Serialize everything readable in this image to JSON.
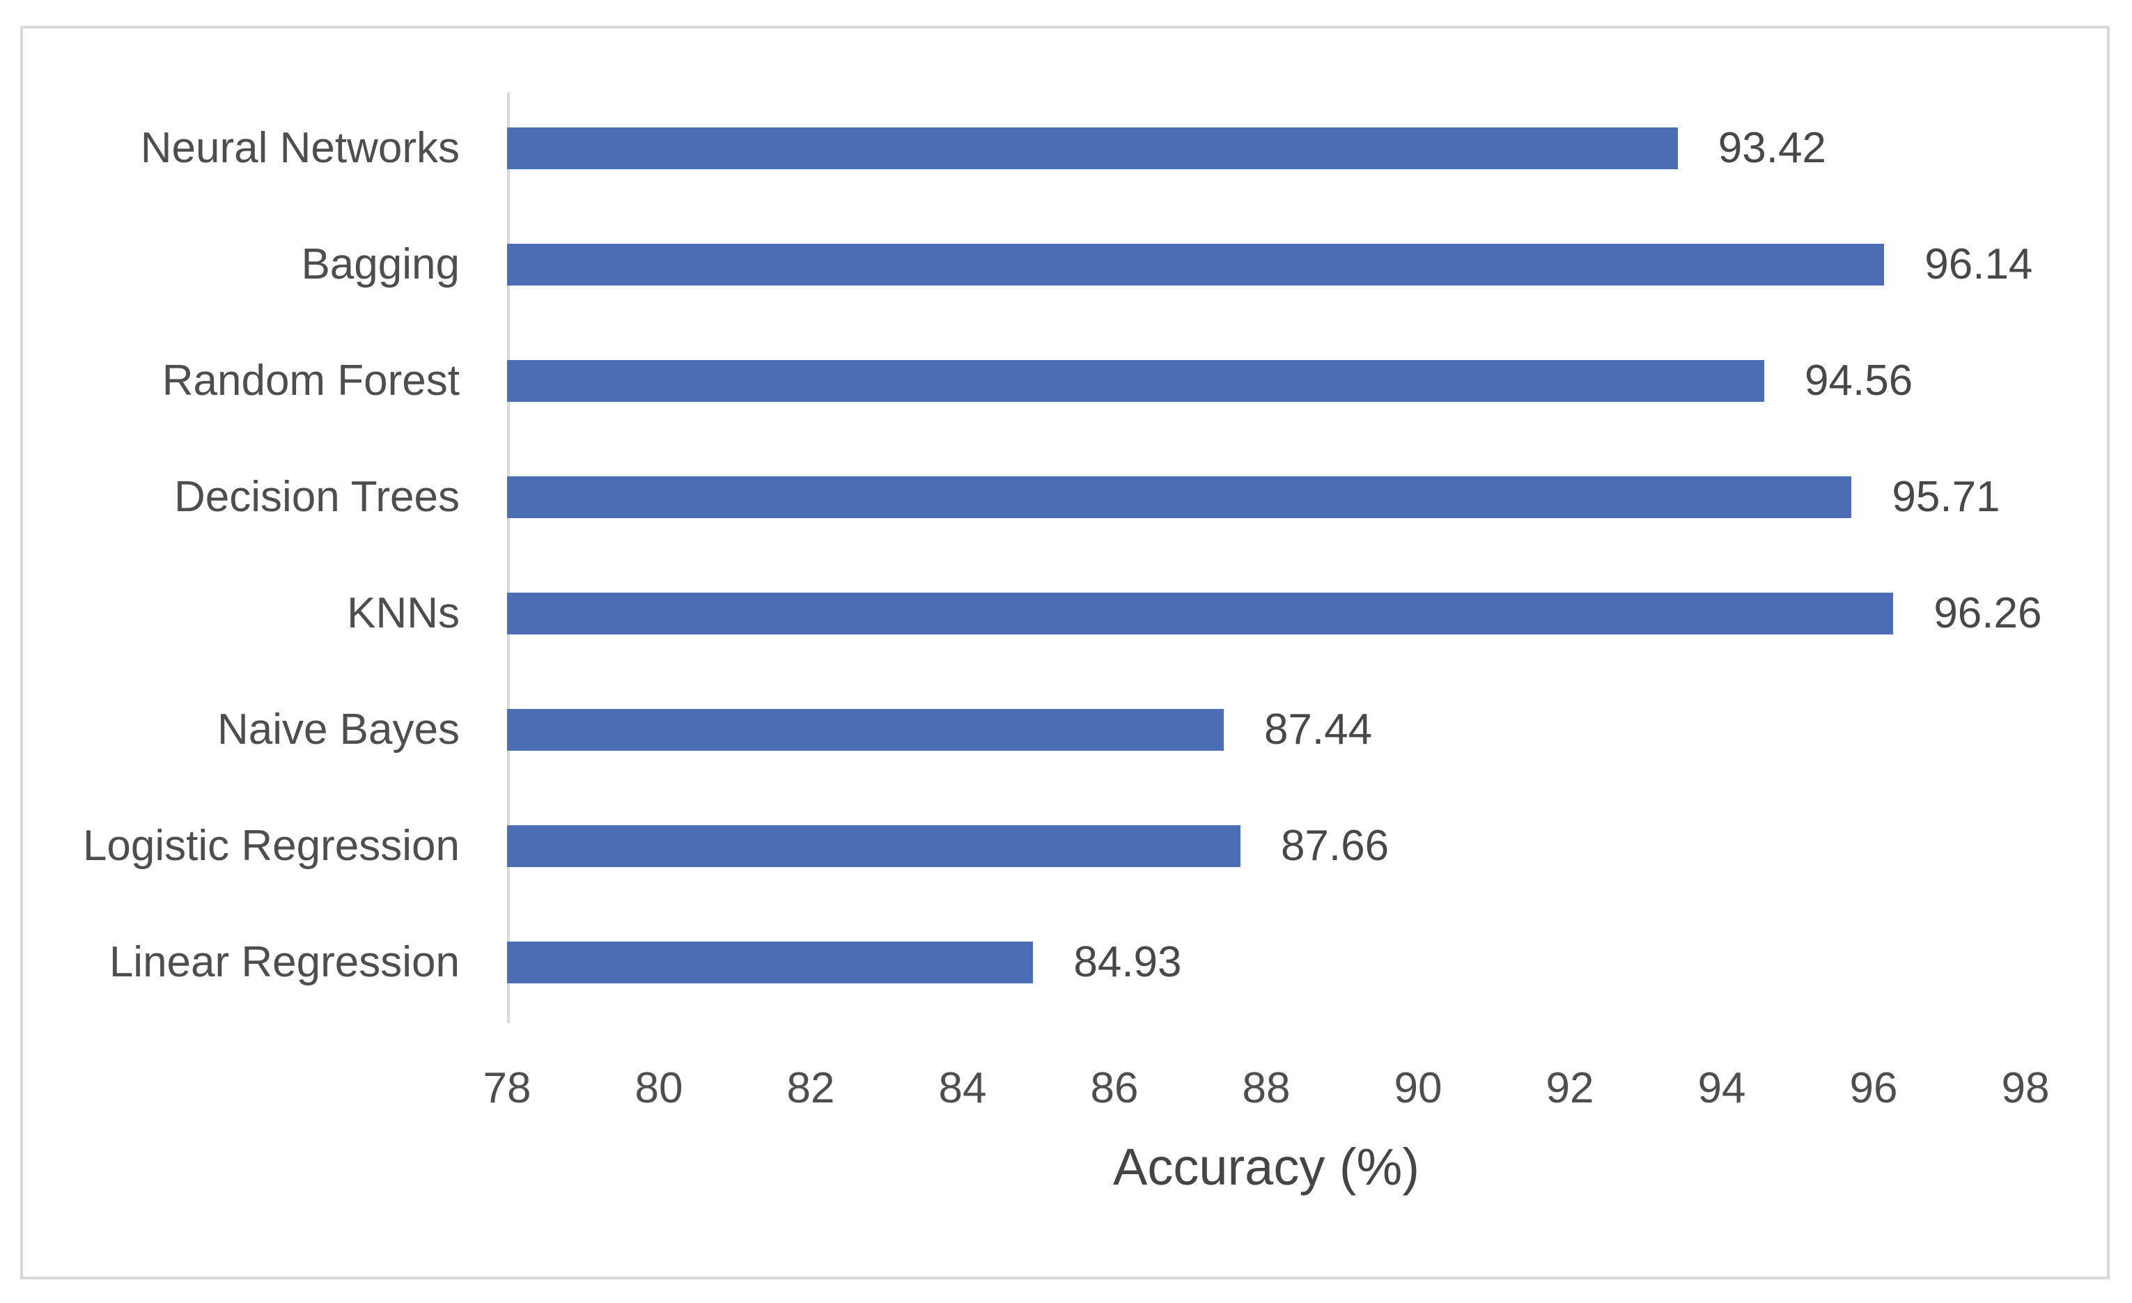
{
  "chart_data": {
    "type": "bar",
    "orientation": "horizontal",
    "title": "",
    "xlabel": "Accuracy (%)",
    "ylabel": "",
    "categories": [
      "Neural Networks",
      "Bagging",
      "Random Forest",
      "Decision Trees",
      "KNNs",
      "Naive Bayes",
      "Logistic Regression",
      "Linear Regression"
    ],
    "values": [
      93.42,
      96.14,
      94.56,
      95.71,
      96.26,
      87.44,
      87.66,
      84.93
    ],
    "value_labels": [
      "93.42",
      "96.14",
      "94.56",
      "95.71",
      "96.26",
      "87.44",
      "87.66",
      "84.93"
    ],
    "xlim": [
      78,
      98
    ],
    "x_ticks": [
      "78",
      "80",
      "82",
      "84",
      "86",
      "88",
      "90",
      "92",
      "94",
      "96",
      "98"
    ],
    "grid": false,
    "legend": false,
    "bar_color": "#4a6db4",
    "axis_line_color": "#d9d9d9",
    "frame_border_color": "#d9d9d9",
    "text_color": "#4e4e4e"
  }
}
